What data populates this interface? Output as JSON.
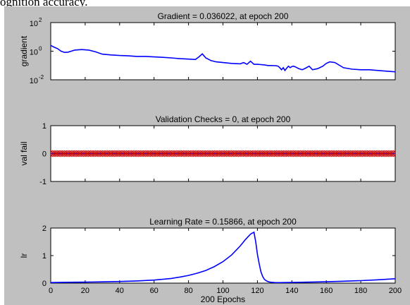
{
  "caption": "ognition accuracy.",
  "chart_data": [
    {
      "type": "line",
      "title": "Gradient = 0.036022, at epoch 200",
      "ylabel": "gradient",
      "xlabel": "",
      "yscale": "log",
      "ylim": [
        0.01,
        100
      ],
      "yticks": [
        {
          "v": 100,
          "base": "10",
          "exp": "2"
        },
        {
          "v": 1,
          "base": "10",
          "exp": "0"
        },
        {
          "v": 0.01,
          "base": "10",
          "exp": "-2"
        }
      ],
      "xlim": [
        0,
        200
      ],
      "grid": false,
      "line_color": "#0000ff",
      "x": [
        0,
        2,
        4,
        6,
        8,
        10,
        14,
        18,
        22,
        26,
        30,
        35,
        40,
        45,
        50,
        55,
        60,
        65,
        70,
        75,
        80,
        84,
        86,
        88,
        90,
        93,
        96,
        100,
        105,
        110,
        112,
        114,
        116,
        118,
        120,
        122,
        124,
        126,
        128,
        130,
        131,
        132,
        133,
        134,
        135,
        136,
        137,
        138,
        139,
        140,
        141,
        142,
        144,
        146,
        148,
        150,
        152,
        155,
        158,
        160,
        162,
        165,
        170,
        175,
        180,
        185,
        190,
        195,
        200
      ],
      "y": [
        2.5,
        1.9,
        1.5,
        1.0,
        0.82,
        0.85,
        1.2,
        1.3,
        1.2,
        0.9,
        0.62,
        0.55,
        0.5,
        0.47,
        0.43,
        0.43,
        0.4,
        0.37,
        0.34,
        0.3,
        0.28,
        0.26,
        0.4,
        0.65,
        0.34,
        0.22,
        0.18,
        0.16,
        0.14,
        0.13,
        0.16,
        0.12,
        0.2,
        0.12,
        0.12,
        0.115,
        0.11,
        0.1,
        0.1,
        0.097,
        0.095,
        0.09,
        0.07,
        0.05,
        0.07,
        0.045,
        0.065,
        0.09,
        0.07,
        0.085,
        0.09,
        0.08,
        0.06,
        0.05,
        0.065,
        0.09,
        0.05,
        0.06,
        0.09,
        0.14,
        0.18,
        0.16,
        0.07,
        0.055,
        0.05,
        0.05,
        0.045,
        0.04,
        0.036
      ]
    },
    {
      "type": "line",
      "title": "Validation Checks = 0, at epoch 200",
      "ylabel": "val fail",
      "xlabel": "",
      "ylim": [
        -1,
        1
      ],
      "yticks": [
        1,
        0,
        -1
      ],
      "xlim": [
        0,
        200
      ],
      "grid": false,
      "line_color": "#0000ff",
      "marker_color": "#cc0000",
      "marker": "diamond",
      "constant_value": 0,
      "epochs": 200
    },
    {
      "type": "line",
      "title": "Learning Rate = 0.15866, at epoch 200",
      "ylabel": "lr",
      "xlabel": "200 Epochs",
      "ylim": [
        0,
        2
      ],
      "yticks": [
        2,
        1,
        0
      ],
      "xlim": [
        0,
        200
      ],
      "xticks": [
        0,
        20,
        40,
        60,
        80,
        100,
        120,
        140,
        160,
        180,
        200
      ],
      "grid": false,
      "line_color": "#0000ff",
      "x": [
        0,
        10,
        20,
        30,
        40,
        50,
        60,
        70,
        75,
        80,
        85,
        90,
        95,
        100,
        105,
        110,
        113,
        116,
        118,
        119,
        120,
        121,
        122,
        123,
        124,
        125,
        126,
        127,
        128,
        130,
        133,
        135,
        140,
        150,
        160,
        170,
        180,
        190,
        200
      ],
      "y": [
        0.02,
        0.03,
        0.035,
        0.045,
        0.06,
        0.08,
        0.11,
        0.17,
        0.22,
        0.28,
        0.36,
        0.46,
        0.6,
        0.78,
        1.02,
        1.35,
        1.58,
        1.78,
        1.85,
        1.5,
        1.05,
        0.72,
        0.42,
        0.25,
        0.14,
        0.09,
        0.06,
        0.04,
        0.03,
        0.02,
        0.018,
        0.02,
        0.025,
        0.035,
        0.05,
        0.07,
        0.09,
        0.12,
        0.159
      ]
    }
  ]
}
